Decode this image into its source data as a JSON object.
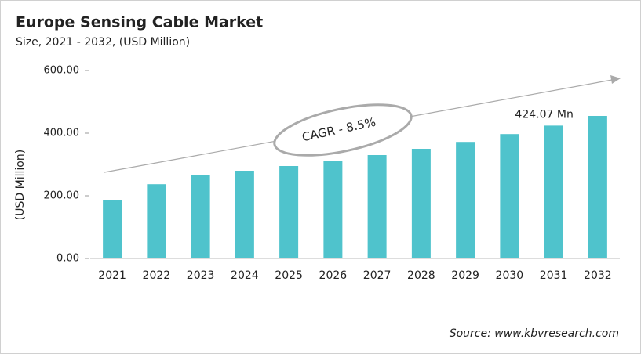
{
  "chart_data": {
    "type": "bar",
    "title": "Europe Sensing Cable Market",
    "subtitle": "Size, 2021 - 2032, (USD Million)",
    "y_label": "(USD Million)",
    "categories": [
      "2021",
      "2022",
      "2023",
      "2024",
      "2025",
      "2026",
      "2027",
      "2028",
      "2029",
      "2030",
      "2031",
      "2032"
    ],
    "values": [
      185,
      237,
      267,
      280,
      295,
      312,
      330,
      350,
      372,
      397,
      424.07,
      455
    ],
    "value_labels": [
      null,
      null,
      null,
      null,
      null,
      null,
      null,
      null,
      null,
      null,
      "424.07 Mn",
      null
    ],
    "color": "#4fc3cc",
    "ylim": [
      0,
      600
    ],
    "yticks": [
      {
        "value": 0,
        "label": "0.00"
      },
      {
        "value": 200,
        "label": "200.00"
      },
      {
        "value": 400,
        "label": "400.00"
      },
      {
        "value": 600,
        "label": "600.00"
      }
    ],
    "grid": false,
    "annotation": "CAGR - 8.5%",
    "source": "Source: www.kbvresearch.com"
  }
}
